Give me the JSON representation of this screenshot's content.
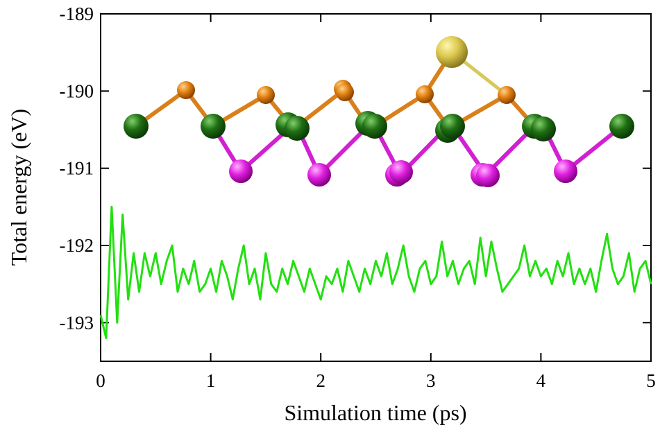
{
  "chart_data": {
    "type": "line",
    "xlabel": "Simulation time (ps)",
    "ylabel": "Total energy (eV)",
    "xlim": [
      0,
      5
    ],
    "xticks": [
      0,
      1,
      2,
      3,
      4,
      5
    ],
    "ylim": [
      -193.5,
      -189
    ],
    "yticks": [
      -193,
      -192,
      -191,
      -190,
      -189
    ],
    "series": [
      {
        "color": "#22e010",
        "x": [
          0,
          0.05,
          0.1,
          0.15,
          0.2,
          0.25,
          0.3,
          0.35,
          0.4,
          0.45,
          0.5,
          0.55,
          0.6,
          0.65,
          0.7,
          0.75,
          0.8,
          0.85,
          0.9,
          0.95,
          1.0,
          1.05,
          1.1,
          1.15,
          1.2,
          1.25,
          1.3,
          1.35,
          1.4,
          1.45,
          1.5,
          1.55,
          1.6,
          1.65,
          1.7,
          1.75,
          1.8,
          1.85,
          1.9,
          1.95,
          2.0,
          2.05,
          2.1,
          2.15,
          2.2,
          2.25,
          2.3,
          2.35,
          2.4,
          2.45,
          2.5,
          2.55,
          2.6,
          2.65,
          2.7,
          2.75,
          2.8,
          2.85,
          2.9,
          2.95,
          3.0,
          3.05,
          3.1,
          3.15,
          3.2,
          3.25,
          3.3,
          3.35,
          3.4,
          3.45,
          3.5,
          3.55,
          3.6,
          3.65,
          3.7,
          3.75,
          3.8,
          3.85,
          3.9,
          3.95,
          4.0,
          4.05,
          4.1,
          4.15,
          4.2,
          4.25,
          4.3,
          4.35,
          4.4,
          4.45,
          4.5,
          4.55,
          4.6,
          4.65,
          4.7,
          4.75,
          4.8,
          4.85,
          4.9,
          4.95,
          5.0
        ],
        "values": [
          -192.9,
          -193.2,
          -191.5,
          -193.0,
          -191.6,
          -192.7,
          -192.1,
          -192.6,
          -192.1,
          -192.4,
          -192.1,
          -192.5,
          -192.2,
          -192.0,
          -192.6,
          -192.3,
          -192.5,
          -192.2,
          -192.6,
          -192.5,
          -192.3,
          -192.6,
          -192.2,
          -192.4,
          -192.7,
          -192.3,
          -192.0,
          -192.5,
          -192.3,
          -192.7,
          -192.1,
          -192.5,
          -192.6,
          -192.3,
          -192.5,
          -192.2,
          -192.4,
          -192.6,
          -192.3,
          -192.5,
          -192.7,
          -192.4,
          -192.5,
          -192.3,
          -192.6,
          -192.2,
          -192.4,
          -192.6,
          -192.3,
          -192.5,
          -192.2,
          -192.4,
          -192.1,
          -192.5,
          -192.3,
          -192.0,
          -192.4,
          -192.6,
          -192.3,
          -192.2,
          -192.5,
          -192.4,
          -191.95,
          -192.4,
          -192.2,
          -192.5,
          -192.3,
          -192.2,
          -192.5,
          -191.9,
          -192.4,
          -191.95,
          -192.3,
          -192.6,
          -192.5,
          -192.4,
          -192.3,
          -192.0,
          -192.4,
          -192.2,
          -192.4,
          -192.3,
          -192.5,
          -192.2,
          -192.4,
          -192.1,
          -192.5,
          -192.3,
          -192.5,
          -192.3,
          -192.6,
          -192.2,
          -191.85,
          -192.3,
          -192.5,
          -192.4,
          -192.1,
          -192.6,
          -192.3,
          -192.2,
          -192.5
        ]
      }
    ]
  }
}
